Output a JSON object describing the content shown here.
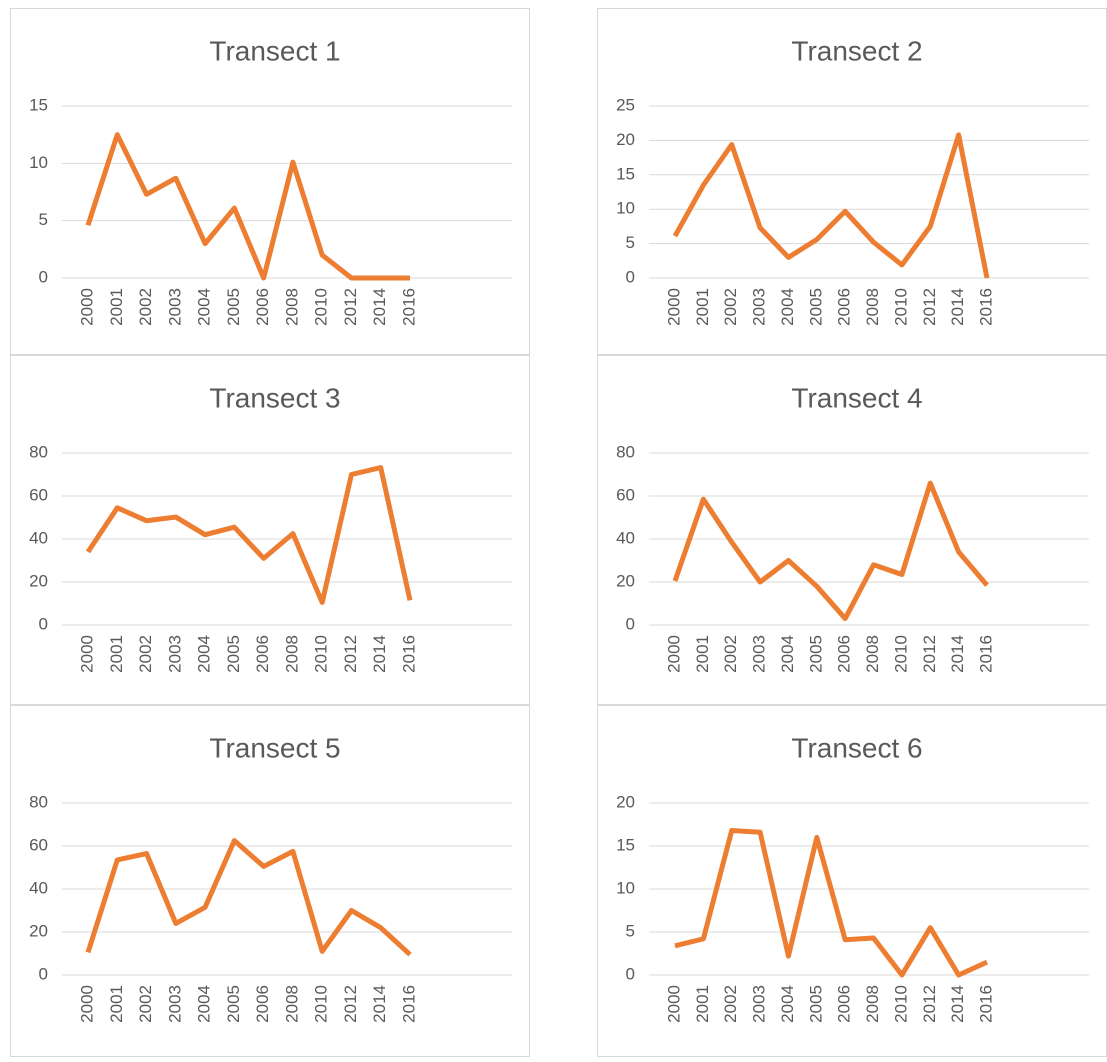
{
  "chart_data": [
    {
      "type": "line",
      "title": "Transect 1",
      "categories": [
        "2000",
        "2001",
        "2002",
        "2003",
        "2004",
        "2005",
        "2006",
        "2008",
        "2010",
        "2012",
        "2014",
        "2016"
      ],
      "values": [
        4.6,
        12.5,
        7.3,
        8.7,
        3.0,
        6.1,
        0,
        10.1,
        2.0,
        0,
        0,
        0
      ],
      "color": "#ed7d31",
      "ylim": [
        0,
        15
      ],
      "yticks": [
        0,
        5,
        10,
        15
      ],
      "grid": true
    },
    {
      "type": "line",
      "title": "Transect 2",
      "categories": [
        "2000",
        "2001",
        "2002",
        "2003",
        "2004",
        "2005",
        "2006",
        "2008",
        "2010",
        "2012",
        "2014",
        "2016"
      ],
      "values": [
        6.1,
        13.5,
        19.4,
        7.3,
        3.0,
        5.6,
        9.7,
        5.2,
        1.9,
        7.5,
        20.8,
        0
      ],
      "color": "#ed7d31",
      "ylim": [
        0,
        25
      ],
      "yticks": [
        0,
        5,
        10,
        15,
        20,
        25
      ],
      "grid": true
    },
    {
      "type": "line",
      "title": "Transect 3",
      "categories": [
        "2000",
        "2001",
        "2002",
        "2003",
        "2004",
        "2005",
        "2006",
        "2008",
        "2010",
        "2012",
        "2014",
        "2016"
      ],
      "values": [
        34,
        54.5,
        48.5,
        50.2,
        42,
        45.5,
        31,
        42.5,
        10.5,
        70,
        73.2,
        11.5
      ],
      "color": "#ed7d31",
      "ylim": [
        0,
        80
      ],
      "yticks": [
        0,
        20,
        40,
        60,
        80
      ],
      "grid": true
    },
    {
      "type": "line",
      "title": "Transect 4",
      "categories": [
        "2000",
        "2001",
        "2002",
        "2003",
        "2004",
        "2005",
        "2006",
        "2008",
        "2010",
        "2012",
        "2014",
        "2016"
      ],
      "values": [
        20.5,
        58.5,
        38.5,
        20,
        30,
        18,
        3,
        28,
        23.5,
        66,
        34,
        18.5
      ],
      "color": "#ed7d31",
      "ylim": [
        0,
        80
      ],
      "yticks": [
        0,
        20,
        40,
        60,
        80
      ],
      "grid": true
    },
    {
      "type": "line",
      "title": "Transect 5",
      "categories": [
        "2000",
        "2001",
        "2002",
        "2003",
        "2004",
        "2005",
        "2006",
        "2008",
        "2010",
        "2012",
        "2014",
        "2016"
      ],
      "values": [
        10.5,
        53.5,
        56.5,
        24,
        31.5,
        62.5,
        50.5,
        57.5,
        11,
        30,
        22,
        9.5
      ],
      "color": "#ed7d31",
      "ylim": [
        0,
        80
      ],
      "yticks": [
        0,
        20,
        40,
        60,
        80
      ],
      "grid": true
    },
    {
      "type": "line",
      "title": "Transect 6",
      "categories": [
        "2000",
        "2001",
        "2002",
        "2003",
        "2004",
        "2005",
        "2006",
        "2008",
        "2010",
        "2012",
        "2014",
        "2016"
      ],
      "values": [
        3.4,
        4.2,
        16.8,
        16.6,
        2.2,
        16,
        4.1,
        4.3,
        0,
        5.5,
        0,
        1.5
      ],
      "color": "#ed7d31",
      "ylim": [
        0,
        20
      ],
      "yticks": [
        0,
        5,
        10,
        15,
        20
      ],
      "grid": true
    }
  ]
}
